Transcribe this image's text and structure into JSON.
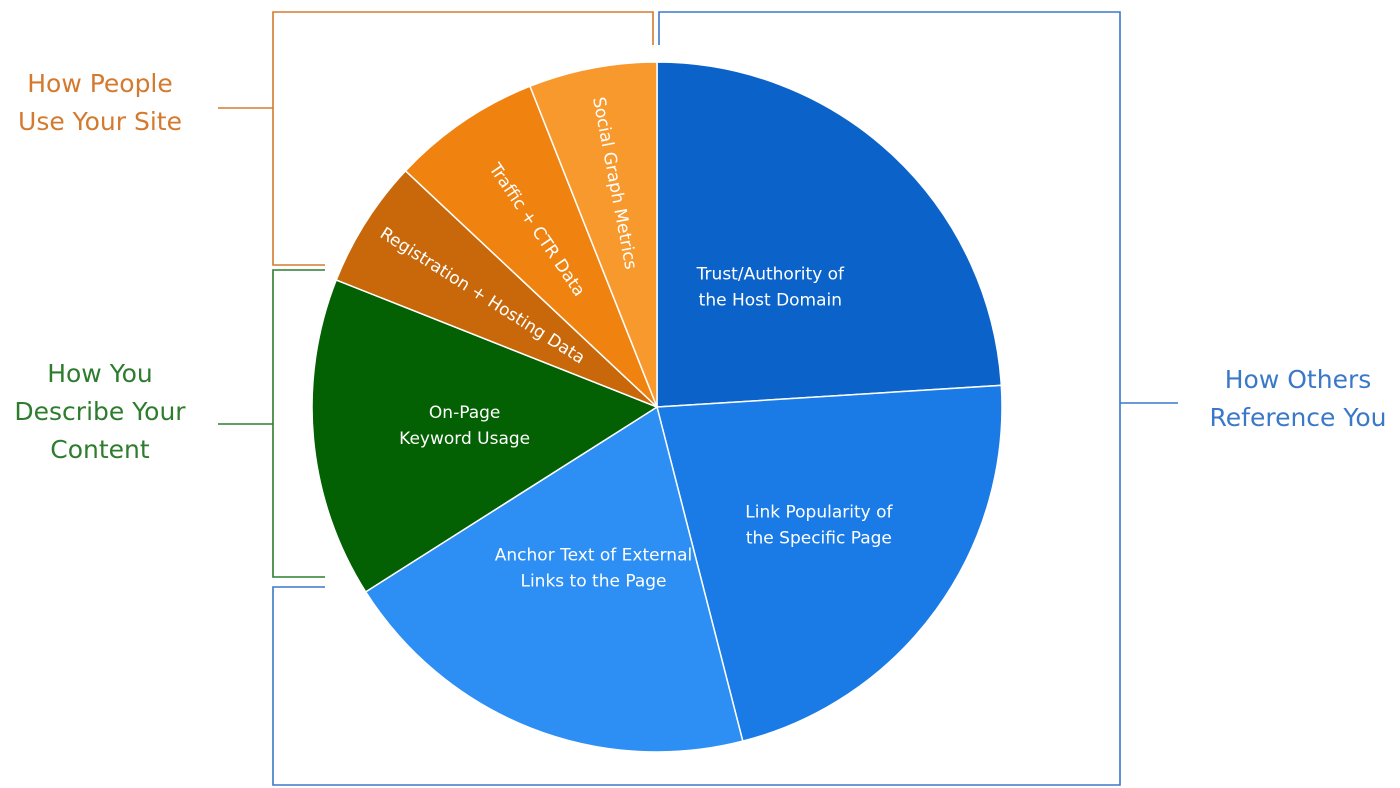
{
  "chart_data": {
    "type": "pie",
    "slices": [
      {
        "label_lines": [
          "Trust/Authority of",
          "the Host Domain"
        ],
        "value": 24,
        "color": "#0b63c9",
        "group": "others"
      },
      {
        "label_lines": [
          "Link Popularity of",
          "the Specific Page"
        ],
        "value": 22,
        "color": "#1a7be6",
        "group": "others"
      },
      {
        "label_lines": [
          "Anchor Text of External",
          "Links to the Page"
        ],
        "value": 20,
        "color": "#2d8ef3",
        "group": "others"
      },
      {
        "label_lines": [
          "On-Page",
          "Keyword Usage"
        ],
        "value": 15,
        "color": "#036003",
        "group": "content"
      },
      {
        "label_lines": [
          "Registration + Hosting Data"
        ],
        "value": 6,
        "color": "#c8680a",
        "group": "people"
      },
      {
        "label_lines": [
          "Traffic + CTR Data"
        ],
        "value": 7,
        "color": "#f08210",
        "group": "people"
      },
      {
        "label_lines": [
          "Social Graph Metrics"
        ],
        "value": 6,
        "color": "#f8992e",
        "group": "people"
      }
    ],
    "groups": [
      {
        "key": "people",
        "label_lines": [
          "How People",
          "Use Your Site"
        ],
        "color": "#d47a2e"
      },
      {
        "key": "content",
        "label_lines": [
          "How You",
          "Describe Your",
          "Content"
        ],
        "color": "#2e7d2e"
      },
      {
        "key": "others",
        "label_lines": [
          "How Others",
          "Reference You"
        ],
        "color": "#3a78c8"
      }
    ]
  }
}
